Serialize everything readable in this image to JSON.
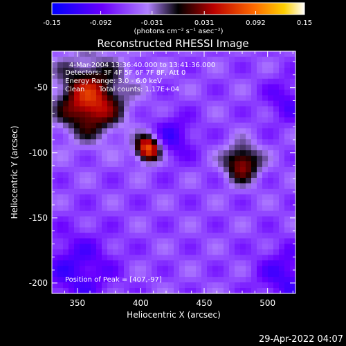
{
  "chart_data": {
    "type": "heatmap",
    "title": "Reconstructed RHESSI Image",
    "xlabel": "Heliocentric X (arcsec)",
    "ylabel": "Heliocentric Y (arcsec)",
    "xlim": [
      330,
      522
    ],
    "ylim": [
      -208,
      -22
    ],
    "x_ticks": [
      350,
      400,
      450,
      500
    ],
    "y_ticks": [
      -50,
      -100,
      -150,
      -200
    ],
    "colorbar": {
      "ticks": [
        -0.15,
        -0.092,
        -0.031,
        0.031,
        0.092,
        0.15
      ],
      "tick_labels": [
        "-0.15",
        "-0.092",
        "-0.031",
        "0.031",
        "0.092",
        "0.15"
      ],
      "range": [
        -0.15,
        0.15
      ],
      "unit_label": "(photons cm⁻² s⁻¹ asec⁻²)"
    },
    "annotations": {
      "time_range": "4-Mar-2004 13:36:40.000 to 13:41:36.000",
      "detectors": "Detectors: 3F 4F 5F 6F 7F 8F, Att 0",
      "energy_range": "Energy Range: 3.0 - 6.0 keV",
      "method": "Clean",
      "total_counts": "Total counts: 1.17E+04",
      "peak": "Position of Peak = [407,-97]"
    },
    "peak_position": [
      407,
      -97
    ],
    "sources": [
      {
        "x": 406,
        "y": -97,
        "sigma": 7,
        "value": 0.15
      },
      {
        "x": 480,
        "y": -108,
        "sigma": 10,
        "value": 0.1
      },
      {
        "x": 360,
        "y": -65,
        "sigma": 15,
        "value": 0.07
      }
    ]
  },
  "footer": {
    "date": "29-Apr-2022 04:07"
  },
  "colors": {
    "background": "#000000",
    "text": "#ffffff"
  }
}
